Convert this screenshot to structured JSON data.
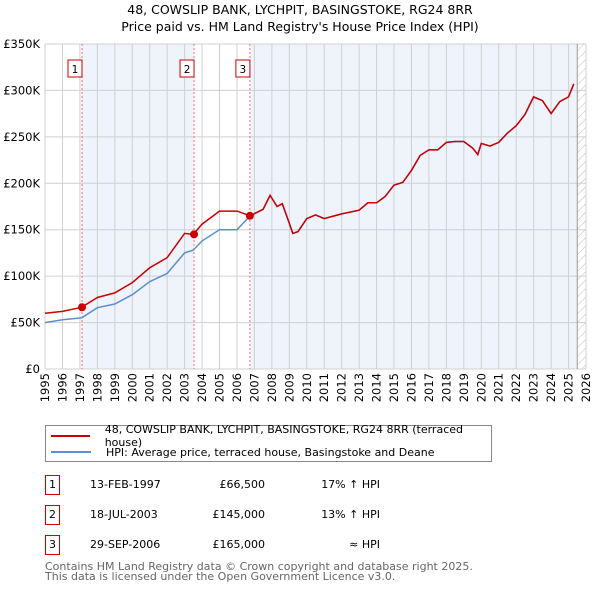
{
  "title": "48, COWSLIP BANK, LYCHPIT, BASINGSTOKE, RG24 8RR",
  "subtitle": "Price paid vs. HM Land Registry's House Price Index (HPI)",
  "chart_data": {
    "type": "line",
    "title": "48, COWSLIP BANK, LYCHPIT, BASINGSTOKE, RG24 8RR — Price paid vs. HM Land Registry's House Price Index (HPI)",
    "xlim": [
      1995,
      2026
    ],
    "ylim": [
      0,
      350000
    ],
    "xticks": [
      "1995",
      "1996",
      "1997",
      "1998",
      "1999",
      "2000",
      "2001",
      "2002",
      "2003",
      "2004",
      "2005",
      "2006",
      "2007",
      "2008",
      "2009",
      "2010",
      "2011",
      "2012",
      "2013",
      "2014",
      "2015",
      "2016",
      "2017",
      "2018",
      "2019",
      "2020",
      "2021",
      "2022",
      "2023",
      "2024",
      "2025",
      "2026"
    ],
    "yticks": [
      {
        "v": 0,
        "l": "£0"
      },
      {
        "v": 50000,
        "l": "£50K"
      },
      {
        "v": 100000,
        "l": "£100K"
      },
      {
        "v": 150000,
        "l": "£150K"
      },
      {
        "v": 200000,
        "l": "£200K"
      },
      {
        "v": 250000,
        "l": "£250K"
      },
      {
        "v": 300000,
        "l": "£300K"
      },
      {
        "v": 350000,
        "l": "£350K"
      }
    ],
    "x": [
      1995,
      1996,
      1997.1,
      1998,
      1999,
      2000,
      2001,
      2002,
      2003,
      2003.5,
      2004,
      2005,
      2006,
      2006.75,
      2007.5,
      2007.9,
      2008.3,
      2008.6,
      2009.0,
      2009.2,
      2009.5,
      2010,
      2010.5,
      2011,
      2012,
      2013,
      2013.5,
      2014,
      2014.5,
      2015,
      2015.5,
      2016,
      2016.5,
      2017,
      2017.5,
      2018,
      2018.5,
      2019,
      2019.5,
      2019.8,
      2020,
      2020.5,
      2021,
      2021.5,
      2022,
      2022.5,
      2023,
      2023.5,
      2024,
      2024.5,
      2025,
      2025.3
    ],
    "series": [
      {
        "name": "48, COWSLIP BANK, LYCHPIT, BASINGSTOKE, RG24 8RR (terraced house)",
        "color": "#cc0000",
        "values": [
          60000,
          62000,
          66500,
          77000,
          82000,
          93000,
          109000,
          120000,
          146000,
          145000,
          156000,
          170000,
          170000,
          165000,
          172000,
          187000,
          175000,
          178000,
          157000,
          146000,
          148000,
          162000,
          166000,
          162000,
          167000,
          171000,
          179000,
          179000,
          186000,
          198000,
          201000,
          214000,
          230000,
          236000,
          236000,
          244000,
          245000,
          245000,
          238000,
          231000,
          243000,
          240000,
          244000,
          254000,
          262000,
          274000,
          293000,
          289000,
          275000,
          288000,
          293000,
          307000
        ]
      },
      {
        "name": "HPI: Average price, terraced house, Basingstoke and Deane",
        "color": "#5b8fd0",
        "values": [
          50000,
          53000,
          55000,
          66000,
          70000,
          80000,
          94000,
          103000,
          125000,
          128000,
          138000,
          150000,
          150000,
          165000,
          172000,
          187000,
          175000,
          178000,
          157000,
          146000,
          148000,
          162000,
          166000,
          162000,
          167000,
          171000,
          179000,
          179000,
          186000,
          198000,
          201000,
          214000,
          230000,
          236000,
          236000,
          244000,
          245000,
          245000,
          238000,
          231000,
          243000,
          240000,
          244000,
          254000,
          262000,
          274000,
          293000,
          289000,
          275000,
          288000,
          293000,
          307000
        ]
      }
    ],
    "sales": [
      {
        "id": "1",
        "x": 1997.12,
        "price": 66500
      },
      {
        "id": "2",
        "x": 2003.54,
        "price": 145000
      },
      {
        "id": "3",
        "x": 2006.74,
        "price": 165000
      }
    ],
    "shaded": [
      [
        1997.12,
        2003.54
      ],
      [
        2006.74,
        2025.5
      ]
    ],
    "forecast_hatch": [
      2025.5,
      2026
    ],
    "legend_placement": "below"
  },
  "legend": [
    "48, COWSLIP BANK, LYCHPIT, BASINGSTOKE, RG24 8RR (terraced house)",
    "HPI: Average price, terraced house, Basingstoke and Deane"
  ],
  "transactions": [
    {
      "id": "1",
      "date": "13-FEB-1997",
      "price": "£66,500",
      "hpi": "17% ↑ HPI"
    },
    {
      "id": "2",
      "date": "18-JUL-2003",
      "price": "£145,000",
      "hpi": "13% ↑ HPI"
    },
    {
      "id": "3",
      "date": "29-SEP-2006",
      "price": "£165,000",
      "hpi": "≈ HPI"
    }
  ],
  "footer": [
    "Contains HM Land Registry data © Crown copyright and database right 2025.",
    "This data is licensed under the Open Government Licence v3.0."
  ]
}
